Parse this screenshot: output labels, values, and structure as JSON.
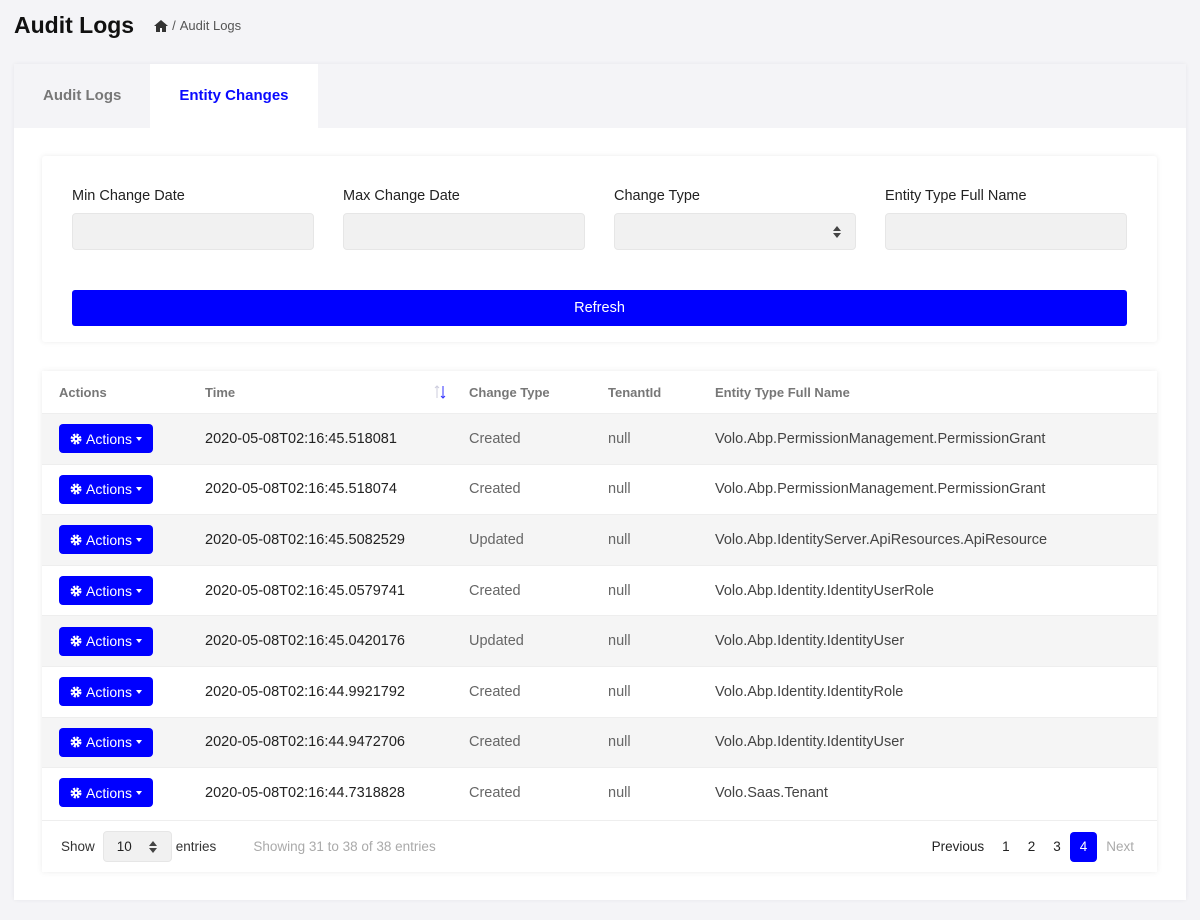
{
  "page": {
    "title": "Audit Logs",
    "breadcrumb": {
      "home_icon": "home-icon",
      "current": "Audit Logs"
    }
  },
  "tabs": [
    {
      "label": "Audit Logs",
      "active": false
    },
    {
      "label": "Entity Changes",
      "active": true
    }
  ],
  "filters": {
    "min_date": {
      "label": "Min Change Date",
      "value": ""
    },
    "max_date": {
      "label": "Max Change Date",
      "value": ""
    },
    "change_type": {
      "label": "Change Type",
      "value": ""
    },
    "entity_type": {
      "label": "Entity Type Full Name",
      "value": ""
    },
    "refresh_label": "Refresh"
  },
  "table": {
    "headers": [
      "Actions",
      "Time",
      "Change Type",
      "TenantId",
      "Entity Type Full Name"
    ],
    "action_label": "Actions",
    "rows": [
      [
        "2020-05-08T02:16:45.518081",
        "Created",
        "null",
        "Volo.Abp.PermissionManagement.PermissionGrant"
      ],
      [
        "2020-05-08T02:16:45.518074",
        "Created",
        "null",
        "Volo.Abp.PermissionManagement.PermissionGrant"
      ],
      [
        "2020-05-08T02:16:45.5082529",
        "Updated",
        "null",
        "Volo.Abp.IdentityServer.ApiResources.ApiResource"
      ],
      [
        "2020-05-08T02:16:45.0579741",
        "Created",
        "null",
        "Volo.Abp.Identity.IdentityUserRole"
      ],
      [
        "2020-05-08T02:16:45.0420176",
        "Updated",
        "null",
        "Volo.Abp.Identity.IdentityUser"
      ],
      [
        "2020-05-08T02:16:44.9921792",
        "Created",
        "null",
        "Volo.Abp.Identity.IdentityRole"
      ],
      [
        "2020-05-08T02:16:44.9472706",
        "Created",
        "null",
        "Volo.Abp.Identity.IdentityUser"
      ],
      [
        "2020-05-08T02:16:44.7318828",
        "Created",
        "null",
        "Volo.Saas.Tenant"
      ]
    ]
  },
  "footer": {
    "show": "Show",
    "page_size": "10",
    "entries": "entries",
    "info": "Showing 31 to 38 of 38 entries",
    "previous": "Previous",
    "pages": [
      "1",
      "2",
      "3",
      "4"
    ],
    "current_page": "4",
    "next": "Next"
  },
  "colors": {
    "accent": "#0000ff"
  }
}
